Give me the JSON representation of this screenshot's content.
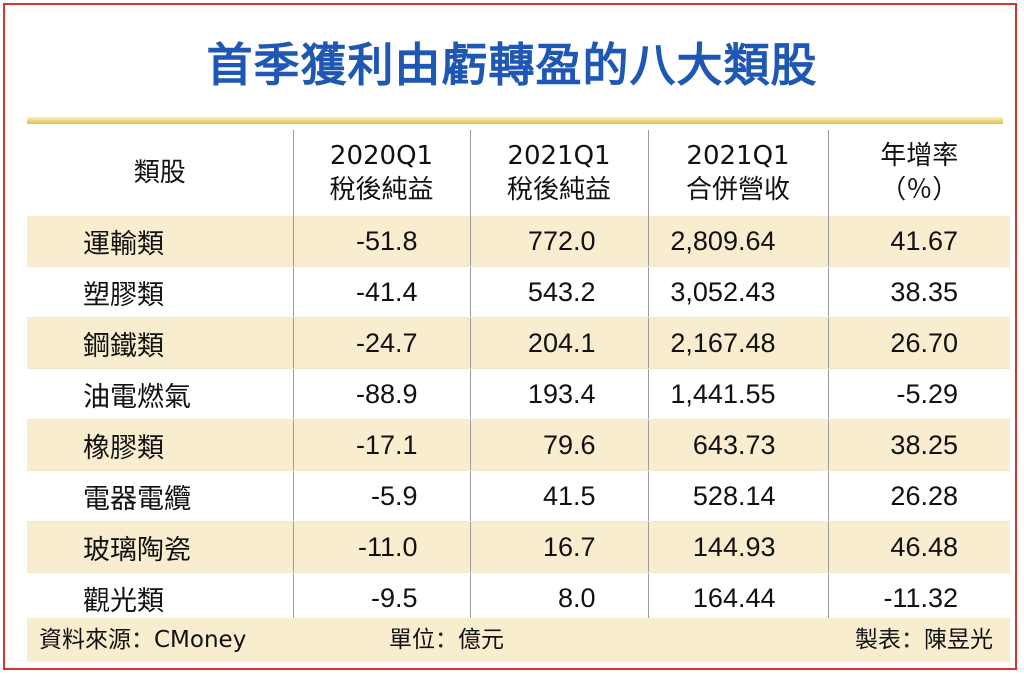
{
  "title": "首季獲利由虧轉盈的八大類股",
  "chart_data": {
    "type": "table",
    "columns": [
      {
        "line1": "類股",
        "line2": ""
      },
      {
        "line1": "2020Q1",
        "line2": "稅後純益"
      },
      {
        "line1": "2021Q1",
        "line2": "稅後純益"
      },
      {
        "line1": "2021Q1",
        "line2": "合併營收"
      },
      {
        "line1": "年增率",
        "line2": "（％）"
      }
    ],
    "rows": [
      {
        "name": "運輸類",
        "profit_2020q1": "-51.8",
        "profit_2021q1": "772.0",
        "revenue_2021q1": "2,809.64",
        "yoy_pct": "41.67"
      },
      {
        "name": "塑膠類",
        "profit_2020q1": "-41.4",
        "profit_2021q1": "543.2",
        "revenue_2021q1": "3,052.43",
        "yoy_pct": "38.35"
      },
      {
        "name": "鋼鐵類",
        "profit_2020q1": "-24.7",
        "profit_2021q1": "204.1",
        "revenue_2021q1": "2,167.48",
        "yoy_pct": "26.70"
      },
      {
        "name": "油電燃氣",
        "profit_2020q1": "-88.9",
        "profit_2021q1": "193.4",
        "revenue_2021q1": "1,441.55",
        "yoy_pct": "-5.29"
      },
      {
        "name": "橡膠類",
        "profit_2020q1": "-17.1",
        "profit_2021q1": "79.6",
        "revenue_2021q1": "643.73",
        "yoy_pct": "38.25"
      },
      {
        "name": "電器電纜",
        "profit_2020q1": "-5.9",
        "profit_2021q1": "41.5",
        "revenue_2021q1": "528.14",
        "yoy_pct": "26.28"
      },
      {
        "name": "玻璃陶瓷",
        "profit_2020q1": "-11.0",
        "profit_2021q1": "16.7",
        "revenue_2021q1": "144.93",
        "yoy_pct": "46.48"
      },
      {
        "name": "觀光類",
        "profit_2020q1": "-9.5",
        "profit_2021q1": "8.0",
        "revenue_2021q1": "164.44",
        "yoy_pct": "-11.32"
      }
    ]
  },
  "footer": {
    "source": "資料來源：CMoney",
    "unit": "單位：億元",
    "credit": "製表：陳昱光"
  },
  "colors": {
    "title": "#1f57b4",
    "border": "#d9342b",
    "row_shade": "#f8edcf",
    "title_bar": "#e9d67a"
  }
}
